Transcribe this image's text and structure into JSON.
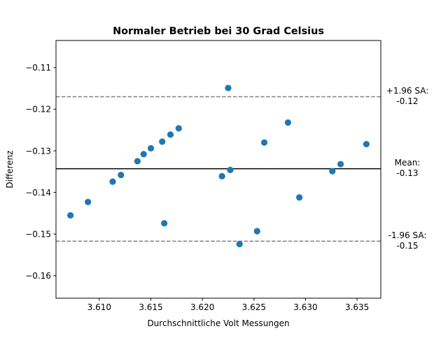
{
  "chart_data": {
    "type": "scatter",
    "title": "Normaler Betrieb bei 30 Grad Celsius",
    "xlabel": "Durchschnittliche Volt Messungen",
    "ylabel": "Differenz",
    "xlim": [
      3.6058,
      3.6373
    ],
    "ylim": [
      -0.1654,
      -0.1035
    ],
    "xticks": [
      "3.610",
      "3.615",
      "3.620",
      "3.625",
      "3.630",
      "3.635"
    ],
    "xtick_values": [
      3.61,
      3.615,
      3.62,
      3.625,
      3.63,
      3.635
    ],
    "yticks": [
      "−0.11",
      "−0.12",
      "−0.13",
      "−0.14",
      "−0.15",
      "−0.16"
    ],
    "ytick_values": [
      -0.11,
      -0.12,
      -0.13,
      -0.14,
      -0.15,
      -0.16
    ],
    "grid": false,
    "marker_color": "#1f77b4",
    "points": [
      {
        "x": 3.6072,
        "y": -0.1455
      },
      {
        "x": 3.6089,
        "y": -0.1423
      },
      {
        "x": 3.6113,
        "y": -0.1374
      },
      {
        "x": 3.6121,
        "y": -0.1358
      },
      {
        "x": 3.6137,
        "y": -0.1325
      },
      {
        "x": 3.6143,
        "y": -0.1308
      },
      {
        "x": 3.615,
        "y": -0.1294
      },
      {
        "x": 3.6161,
        "y": -0.1278
      },
      {
        "x": 3.6163,
        "y": -0.1474
      },
      {
        "x": 3.6169,
        "y": -0.1261
      },
      {
        "x": 3.6177,
        "y": -0.1246
      },
      {
        "x": 3.6219,
        "y": -0.1361
      },
      {
        "x": 3.6225,
        "y": -0.1149
      },
      {
        "x": 3.6227,
        "y": -0.1346
      },
      {
        "x": 3.6236,
        "y": -0.1524
      },
      {
        "x": 3.6253,
        "y": -0.1493
      },
      {
        "x": 3.626,
        "y": -0.128
      },
      {
        "x": 3.6283,
        "y": -0.1232
      },
      {
        "x": 3.6294,
        "y": -0.1412
      },
      {
        "x": 3.6326,
        "y": -0.1349
      },
      {
        "x": 3.6334,
        "y": -0.1332
      },
      {
        "x": 3.6359,
        "y": -0.1284
      }
    ],
    "reference_lines": [
      {
        "name": "upper-limit",
        "y": -0.117,
        "style": "dashed",
        "color": "#808080",
        "label_line1": "+1.96 SA:",
        "label_line2": "-0.12"
      },
      {
        "name": "mean",
        "y": -0.1343,
        "style": "solid",
        "color": "#000000",
        "label_line1": "Mean:",
        "label_line2": "-0.13"
      },
      {
        "name": "lower-limit",
        "y": -0.1517,
        "style": "dashed",
        "color": "#808080",
        "label_line1": "-1.96 SA:",
        "label_line2": "-0.15"
      }
    ]
  }
}
